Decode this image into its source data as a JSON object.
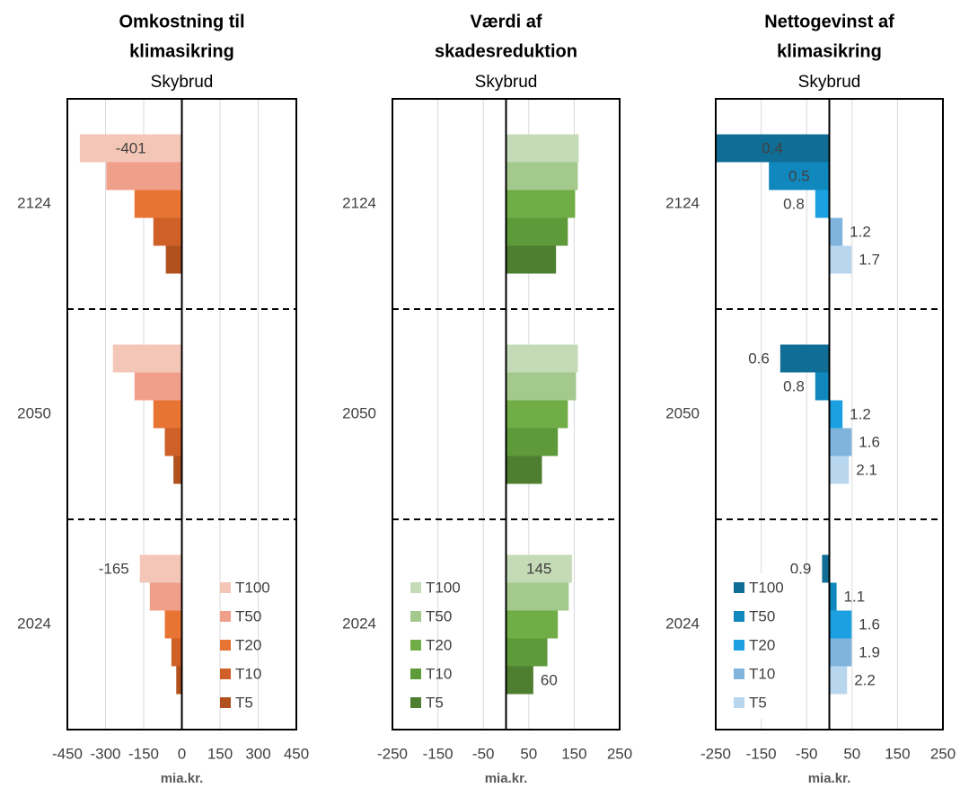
{
  "chart_data": [
    {
      "type": "hbar",
      "title": [
        "Omkostning til",
        "klimasikring"
      ],
      "subtitle": "Skybrud",
      "x_label": "mia.kr.",
      "categories": [
        "2124",
        "2050",
        "2024"
      ],
      "xlim": [
        -450,
        450
      ],
      "xticks": [
        -450,
        -300,
        -150,
        0,
        150,
        300,
        450
      ],
      "grid": true,
      "legend": "lower right",
      "series": [
        {
          "name": "T100",
          "color": "#f4c6b7",
          "values": [
            -401,
            -271,
            -165
          ],
          "value_labels": [
            "-401",
            null,
            "-165"
          ]
        },
        {
          "name": "T50",
          "color": "#f0a08a",
          "values": [
            -297,
            -186,
            -126
          ]
        },
        {
          "name": "T20",
          "color": "#e87434",
          "values": [
            -186,
            -112,
            -67
          ]
        },
        {
          "name": "T10",
          "color": "#cf6128",
          "values": [
            -112,
            -67,
            -41
          ]
        },
        {
          "name": "T5",
          "color": "#b1521e",
          "values": [
            -63,
            -33,
            -22
          ]
        }
      ]
    },
    {
      "type": "hbar",
      "title": [
        "Værdi af",
        "skadesreduktion"
      ],
      "subtitle": "Skybrud",
      "x_label": "mia.kr.",
      "categories": [
        "2124",
        "2050",
        "2024"
      ],
      "xlim": [
        -250,
        250
      ],
      "xticks": [
        -250,
        -150,
        -50,
        50,
        150,
        250
      ],
      "grid": true,
      "legend": "lower left",
      "series": [
        {
          "name": "T100",
          "color": "#c5dbb7",
          "values": [
            160,
            158,
            145
          ],
          "value_labels": [
            null,
            null,
            "145"
          ]
        },
        {
          "name": "T50",
          "color": "#a3c98d",
          "values": [
            158,
            154,
            138
          ]
        },
        {
          "name": "T20",
          "color": "#70ad47",
          "values": [
            152,
            136,
            114
          ]
        },
        {
          "name": "T10",
          "color": "#5e993a",
          "values": [
            136,
            114,
            91
          ]
        },
        {
          "name": "T5",
          "color": "#4e7e30",
          "values": [
            110,
            79,
            60
          ],
          "value_labels": [
            null,
            null,
            "60"
          ]
        }
      ]
    },
    {
      "type": "hbar",
      "title": [
        "Nettogevinst af",
        "klimasikring"
      ],
      "subtitle": "Skybrud",
      "x_label": "mia.kr.",
      "categories": [
        "2124",
        "2050",
        "2024"
      ],
      "xlim": [
        -250,
        250
      ],
      "xticks": [
        -250,
        -150,
        -50,
        50,
        150,
        250
      ],
      "grid": true,
      "legend": "lower left",
      "series": [
        {
          "name": "T100",
          "color": "#106e96",
          "values": [
            -251,
            -108,
            -16
          ],
          "ratios": [
            0.4,
            0.6,
            0.9
          ]
        },
        {
          "name": "T50",
          "color": "#1188bd",
          "values": [
            -133,
            -31,
            16
          ],
          "ratios": [
            0.5,
            0.8,
            1.1
          ]
        },
        {
          "name": "T20",
          "color": "#1ba1e2",
          "values": [
            -31,
            29,
            49
          ],
          "ratios": [
            0.8,
            1.2,
            1.6
          ]
        },
        {
          "name": "T10",
          "color": "#80b4dd",
          "values": [
            29,
            49,
            49
          ],
          "ratios": [
            1.2,
            1.6,
            1.9
          ]
        },
        {
          "name": "T5",
          "color": "#b9d6ef",
          "values": [
            49,
            43,
            39
          ],
          "ratios": [
            1.7,
            2.1,
            2.2
          ]
        }
      ]
    }
  ]
}
